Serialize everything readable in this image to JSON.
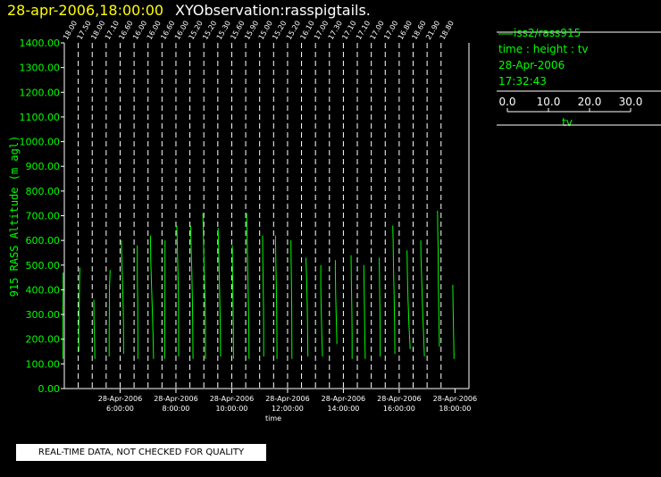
{
  "header": {
    "datetime": "28-apr-2006,18:00:00",
    "title": "XYObservation:rasspigtails."
  },
  "legend": {
    "series_name": "iss2/rass915",
    "axes_desc": "time : height : tv",
    "date": "28-Apr-2006",
    "time": "17:32:43"
  },
  "scale": {
    "ticks": [
      "0.0",
      "10.0",
      "20.0",
      "30.0"
    ],
    "title": "tv"
  },
  "notice": "REAL-TIME DATA, NOT CHECKED FOR QUALITY",
  "colors": {
    "background": "#000000",
    "trace": "#00ff00",
    "axis": "#ffffff",
    "header_datetime": "#ffff00"
  },
  "chart_data": {
    "type": "line",
    "title": "",
    "ylabel": "915 RASS Altitude (m agl)",
    "xlabel": "time",
    "ylim": [
      0,
      1400
    ],
    "yticks": [
      "0.00",
      "100.00",
      "200.00",
      "300.00",
      "400.00",
      "500.00",
      "600.00",
      "700.00",
      "800.00",
      "900.00",
      "1000.00",
      "1100.00",
      "1200.00",
      "1300.00",
      "1400.00"
    ],
    "xlim": [
      "2006-04-28 04:00",
      "2006-04-28 18:30"
    ],
    "xticks": [
      {
        "t": "2006-04-28 06:00",
        "date": "28-Apr-2006",
        "time": "6:00:00"
      },
      {
        "t": "2006-04-28 08:00",
        "date": "28-Apr-2006",
        "time": "8:00:00"
      },
      {
        "t": "2006-04-28 10:00",
        "date": "28-Apr-2006",
        "time": "10:00:00"
      },
      {
        "t": "2006-04-28 12:00",
        "date": "28-Apr-2006",
        "time": "12:00:00"
      },
      {
        "t": "2006-04-28 14:00",
        "date": "28-Apr-2006",
        "time": "14:00:00"
      },
      {
        "t": "2006-04-28 16:00",
        "date": "28-Apr-2006",
        "time": "16:00:00"
      },
      {
        "t": "2006-04-28 18:00",
        "date": "28-Apr-2006",
        "time": "18:00:00"
      }
    ],
    "profile_scale": {
      "min": 0,
      "max": 30,
      "unit": "tv"
    },
    "profiles": [
      {
        "t": "2006-04-28 04:00",
        "label": "18.00",
        "points": [
          [
            120,
            8.9
          ],
          [
            220,
            8.8
          ],
          [
            320,
            8.9
          ],
          [
            420,
            9.1
          ],
          [
            470,
            9.1
          ]
        ]
      },
      {
        "t": "2006-04-28 04:30",
        "label": "17.50",
        "points": [
          [
            150,
            10.5
          ],
          [
            230,
            10.4
          ],
          [
            310,
            10.7
          ],
          [
            400,
            10.9
          ],
          [
            490,
            11.3
          ]
        ]
      },
      {
        "t": "2006-04-28 05:00",
        "label": "18.00",
        "points": [
          [
            120,
            12.1
          ],
          [
            200,
            11.8
          ],
          [
            280,
            11.4
          ],
          [
            360,
            11.3
          ]
        ]
      },
      {
        "t": "2006-04-28 05:30",
        "label": "17.10",
        "points": [
          [
            130,
            12.4
          ],
          [
            220,
            12.4
          ],
          [
            300,
            12.5
          ],
          [
            400,
            12.6
          ],
          [
            480,
            13.2
          ]
        ]
      },
      {
        "t": "2006-04-28 06:00",
        "label": "16.60",
        "points": [
          [
            140,
            12.8
          ],
          [
            250,
            12.7
          ],
          [
            350,
            12.4
          ],
          [
            440,
            11.9
          ],
          [
            520,
            11.4
          ],
          [
            600,
            11.0
          ]
        ]
      },
      {
        "t": "2006-04-28 06:30",
        "label": "16.00",
        "points": [
          [
            120,
            13.1
          ],
          [
            240,
            13.0
          ],
          [
            350,
            12.9
          ],
          [
            460,
            12.6
          ],
          [
            580,
            12.6
          ]
        ]
      },
      {
        "t": "2006-04-28 07:00",
        "label": "16.00",
        "points": [
          [
            120,
            14.4
          ],
          [
            220,
            14.0
          ],
          [
            320,
            13.4
          ],
          [
            420,
            12.8
          ],
          [
            520,
            12.2
          ],
          [
            620,
            11.9
          ]
        ]
      },
      {
        "t": "2006-04-28 07:30",
        "label": "16.60",
        "points": [
          [
            120,
            12.1
          ],
          [
            220,
            12.2
          ],
          [
            320,
            12.3
          ],
          [
            420,
            12.4
          ],
          [
            520,
            12.4
          ],
          [
            600,
            12.5
          ]
        ]
      },
      {
        "t": "2006-04-28 08:00",
        "label": "16.00",
        "points": [
          [
            130,
            12.2
          ],
          [
            250,
            12.1
          ],
          [
            360,
            12.0
          ],
          [
            480,
            11.6
          ],
          [
            600,
            11.0
          ],
          [
            660,
            10.7
          ]
        ]
      },
      {
        "t": "2006-04-28 08:30",
        "label": "15.20",
        "points": [
          [
            120,
            12.5
          ],
          [
            240,
            12.3
          ],
          [
            360,
            12.0
          ],
          [
            480,
            11.5
          ],
          [
            600,
            10.9
          ],
          [
            660,
            10.7
          ]
        ]
      },
      {
        "t": "2006-04-28 09:00",
        "label": "15.20",
        "points": [
          [
            120,
            11.3
          ],
          [
            240,
            11.3
          ],
          [
            360,
            11.0
          ],
          [
            480,
            10.3
          ],
          [
            600,
            9.7
          ],
          [
            710,
            9.2
          ]
        ]
      },
      {
        "t": "2006-04-28 09:30",
        "label": "15.30",
        "points": [
          [
            130,
            12.2
          ],
          [
            260,
            12.0
          ],
          [
            390,
            11.5
          ],
          [
            520,
            10.9
          ],
          [
            650,
            10.3
          ]
        ]
      },
      {
        "t": "2006-04-28 10:00",
        "label": "15.60",
        "points": [
          [
            120,
            11.4
          ],
          [
            240,
            11.3
          ],
          [
            360,
            11.0
          ],
          [
            480,
            10.6
          ],
          [
            580,
            10.5
          ]
        ]
      },
      {
        "t": "2006-04-28 10:30",
        "label": "15.90",
        "points": [
          [
            120,
            12.7
          ],
          [
            240,
            12.5
          ],
          [
            360,
            12.1
          ],
          [
            480,
            11.7
          ],
          [
            600,
            11.2
          ],
          [
            710,
            10.8
          ]
        ]
      },
      {
        "t": "2006-04-28 11:00",
        "label": "15.00",
        "points": [
          [
            130,
            13.2
          ],
          [
            230,
            13.2
          ],
          [
            330,
            13.1
          ],
          [
            430,
            12.8
          ],
          [
            530,
            12.5
          ],
          [
            620,
            12.4
          ]
        ]
      },
      {
        "t": "2006-04-28 11:30",
        "label": "15.20",
        "points": [
          [
            120,
            12.7
          ],
          [
            220,
            12.6
          ],
          [
            320,
            12.4
          ],
          [
            420,
            12.1
          ],
          [
            520,
            11.8
          ],
          [
            620,
            11.5
          ]
        ]
      },
      {
        "t": "2006-04-28 12:00",
        "label": "15.20",
        "points": [
          [
            120,
            13.5
          ],
          [
            220,
            13.4
          ],
          [
            320,
            13.3
          ],
          [
            420,
            13.1
          ],
          [
            520,
            12.8
          ],
          [
            600,
            12.7
          ]
        ]
      },
      {
        "t": "2006-04-28 12:30",
        "label": "16.10",
        "points": [
          [
            130,
            15.1
          ],
          [
            230,
            14.9
          ],
          [
            330,
            14.6
          ],
          [
            430,
            14.2
          ],
          [
            530,
            13.5
          ]
        ]
      },
      {
        "t": "2006-04-28 13:00",
        "label": "17.00",
        "points": [
          [
            130,
            15.6
          ],
          [
            230,
            15.0
          ],
          [
            330,
            14.5
          ],
          [
            430,
            14.2
          ],
          [
            500,
            14.3
          ]
        ]
      },
      {
        "t": "2006-04-28 13:30",
        "label": "17.30",
        "points": [
          [
            180,
            16.0
          ],
          [
            280,
            15.5
          ],
          [
            380,
            15.0
          ],
          [
            480,
            14.7
          ],
          [
            520,
            14.8
          ]
        ]
      },
      {
        "t": "2006-04-28 14:00",
        "label": "17.10",
        "points": [
          [
            120,
            17.0
          ],
          [
            220,
            17.0
          ],
          [
            320,
            16.8
          ],
          [
            420,
            16.4
          ],
          [
            540,
            16.1
          ]
        ]
      },
      {
        "t": "2006-04-28 14:30",
        "label": "17.10",
        "points": [
          [
            120,
            16.3
          ],
          [
            220,
            16.0
          ],
          [
            320,
            15.7
          ],
          [
            420,
            15.4
          ],
          [
            500,
            15.2
          ]
        ]
      },
      {
        "t": "2006-04-28 15:00",
        "label": "17.00",
        "points": [
          [
            130,
            17.1
          ],
          [
            230,
            17.1
          ],
          [
            330,
            16.9
          ],
          [
            430,
            16.6
          ],
          [
            530,
            16.4
          ]
        ]
      },
      {
        "t": "2006-04-28 15:30",
        "label": "17.00",
        "points": [
          [
            140,
            17.7
          ],
          [
            260,
            17.5
          ],
          [
            380,
            17.1
          ],
          [
            500,
            16.6
          ],
          [
            600,
            16.3
          ],
          [
            660,
            16.0
          ]
        ]
      },
      {
        "t": "2006-04-28 16:00",
        "label": "16.80",
        "points": [
          [
            160,
            18.8
          ],
          [
            260,
            17.8
          ],
          [
            360,
            17.1
          ],
          [
            460,
            16.6
          ],
          [
            560,
            16.3
          ]
        ]
      },
      {
        "t": "2006-04-28 16:30",
        "label": "18.60",
        "points": [
          [
            130,
            19.0
          ],
          [
            230,
            18.3
          ],
          [
            330,
            17.5
          ],
          [
            430,
            16.9
          ],
          [
            530,
            16.3
          ],
          [
            600,
            16.1
          ]
        ]
      },
      {
        "t": "2006-04-28 17:00",
        "label": "21.90",
        "points": [
          [
            170,
            19.8
          ],
          [
            300,
            19.4
          ],
          [
            430,
            19.0
          ],
          [
            560,
            18.8
          ],
          [
            660,
            18.5
          ],
          [
            720,
            18.3
          ]
        ]
      },
      {
        "t": "2006-04-28 17:30",
        "label": "18.80",
        "points": [
          [
            120,
            20.4
          ],
          [
            220,
            20.0
          ],
          [
            320,
            19.7
          ],
          [
            420,
            19.4
          ]
        ]
      }
    ]
  }
}
